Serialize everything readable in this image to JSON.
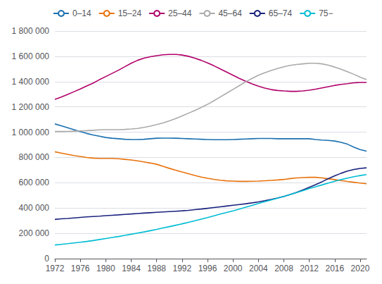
{
  "chart_data": {
    "type": "line",
    "x": [
      1972,
      1973,
      1974,
      1975,
      1976,
      1977,
      1978,
      1979,
      1980,
      1981,
      1982,
      1983,
      1984,
      1985,
      1986,
      1987,
      1988,
      1989,
      1990,
      1991,
      1992,
      1993,
      1994,
      1995,
      1996,
      1997,
      1998,
      1999,
      2000,
      2001,
      2002,
      2003,
      2004,
      2005,
      2006,
      2007,
      2008,
      2009,
      2010,
      2011,
      2012,
      2013,
      2014,
      2015,
      2016,
      2017,
      2018,
      2019,
      2020,
      2021
    ],
    "series": [
      {
        "name": "0–14",
        "color": "#1a6faf",
        "values": [
          1065000,
          1050000,
          1035000,
          1020000,
          1005000,
          990000,
          978000,
          968000,
          958000,
          952000,
          948000,
          944000,
          942000,
          942000,
          944000,
          948000,
          952000,
          953000,
          953000,
          952000,
          950000,
          948000,
          946000,
          944000,
          942000,
          940000,
          940000,
          940000,
          942000,
          944000,
          946000,
          948000,
          950000,
          950000,
          950000,
          948000,
          948000,
          948000,
          948000,
          948000,
          948000,
          942000,
          938000,
          935000,
          930000,
          920000,
          905000,
          882000,
          862000,
          850000
        ]
      },
      {
        "name": "15–24",
        "color": "#e8720c",
        "values": [
          845000,
          835000,
          825000,
          815000,
          808000,
          800000,
          795000,
          793000,
          793000,
          793000,
          790000,
          785000,
          780000,
          773000,
          765000,
          756000,
          746000,
          730000,
          714000,
          699000,
          685000,
          672000,
          658000,
          645000,
          635000,
          627000,
          620000,
          615000,
          613000,
          611000,
          611000,
          612000,
          613000,
          616000,
          619000,
          622000,
          626000,
          633000,
          638000,
          641000,
          643000,
          643000,
          638000,
          632000,
          625000,
          617000,
          610000,
          604000,
          598000,
          592000
        ]
      },
      {
        "name": "25–44",
        "color": "#b0006a",
        "values": [
          1260000,
          1278000,
          1298000,
          1320000,
          1342000,
          1365000,
          1388000,
          1415000,
          1440000,
          1465000,
          1490000,
          1518000,
          1545000,
          1568000,
          1585000,
          1597000,
          1605000,
          1612000,
          1615000,
          1615000,
          1610000,
          1600000,
          1585000,
          1568000,
          1548000,
          1525000,
          1500000,
          1475000,
          1450000,
          1425000,
          1403000,
          1382000,
          1364000,
          1349000,
          1337000,
          1330000,
          1326000,
          1323000,
          1323000,
          1326000,
          1332000,
          1340000,
          1350000,
          1360000,
          1370000,
          1378000,
          1383000,
          1390000,
          1393000,
          1393000
        ]
      },
      {
        "name": "45–64",
        "color": "#aaaaaa",
        "values": [
          1005000,
          1005000,
          1006000,
          1008000,
          1010000,
          1012000,
          1015000,
          1018000,
          1020000,
          1020000,
          1020000,
          1022000,
          1025000,
          1030000,
          1038000,
          1048000,
          1060000,
          1073000,
          1090000,
          1108000,
          1128000,
          1150000,
          1172000,
          1195000,
          1220000,
          1248000,
          1278000,
          1308000,
          1338000,
          1368000,
          1398000,
          1425000,
          1450000,
          1470000,
          1488000,
          1503000,
          1517000,
          1528000,
          1535000,
          1540000,
          1545000,
          1545000,
          1540000,
          1530000,
          1515000,
          1498000,
          1478000,
          1458000,
          1435000,
          1415000
        ]
      },
      {
        "name": "65–74",
        "color": "#1a237e",
        "values": [
          310000,
          315000,
          318000,
          322000,
          326000,
          330000,
          333000,
          336000,
          340000,
          343000,
          346000,
          350000,
          353000,
          357000,
          360000,
          363000,
          366000,
          369000,
          372000,
          375000,
          378000,
          382000,
          387000,
          392000,
          398000,
          404000,
          410000,
          416000,
          422000,
          428000,
          434000,
          441000,
          449000,
          458000,
          468000,
          479000,
          492000,
          507000,
          524000,
          543000,
          564000,
          585000,
          608000,
          632000,
          655000,
          675000,
          692000,
          705000,
          713000,
          718000
        ]
      },
      {
        "name": "75−",
        "color": "#00bcd4",
        "values": [
          108000,
          113000,
          118000,
          124000,
          130000,
          136000,
          143000,
          151000,
          159000,
          167000,
          175000,
          184000,
          193000,
          202000,
          211000,
          221000,
          231000,
          242000,
          253000,
          264000,
          275000,
          287000,
          299000,
          312000,
          325000,
          338000,
          352000,
          365000,
          378000,
          392000,
          407000,
          421000,
          436000,
          450000,
          464000,
          478000,
          492000,
          507000,
          522000,
          538000,
          554000,
          569000,
          583000,
          598000,
          612000,
          625000,
          637000,
          648000,
          657000,
          665000
        ]
      }
    ],
    "xlim": [
      1972,
      2021
    ],
    "xticks": [
      1972,
      1976,
      1980,
      1984,
      1988,
      1992,
      1996,
      2000,
      2004,
      2008,
      2012,
      2016,
      2020
    ],
    "ylim": [
      0,
      1800000
    ],
    "yticks": [
      0,
      {
        "value": 200000,
        "label": "200 000"
      },
      {
        "value": 400000,
        "label": "400 000"
      },
      {
        "value": 600000,
        "label": "600 000"
      },
      {
        "value": 800000,
        "label": "800 000"
      },
      {
        "value": 1000000,
        "label": "1 000 000"
      },
      {
        "value": 1200000,
        "label": "1 200 000"
      },
      {
        "value": 1400000,
        "label": "1 400 000"
      },
      {
        "value": 1600000,
        "label": "1 600 000"
      },
      {
        "value": 1800000,
        "label": "1 800 000"
      }
    ],
    "grid": true,
    "legend": "upper left"
  }
}
